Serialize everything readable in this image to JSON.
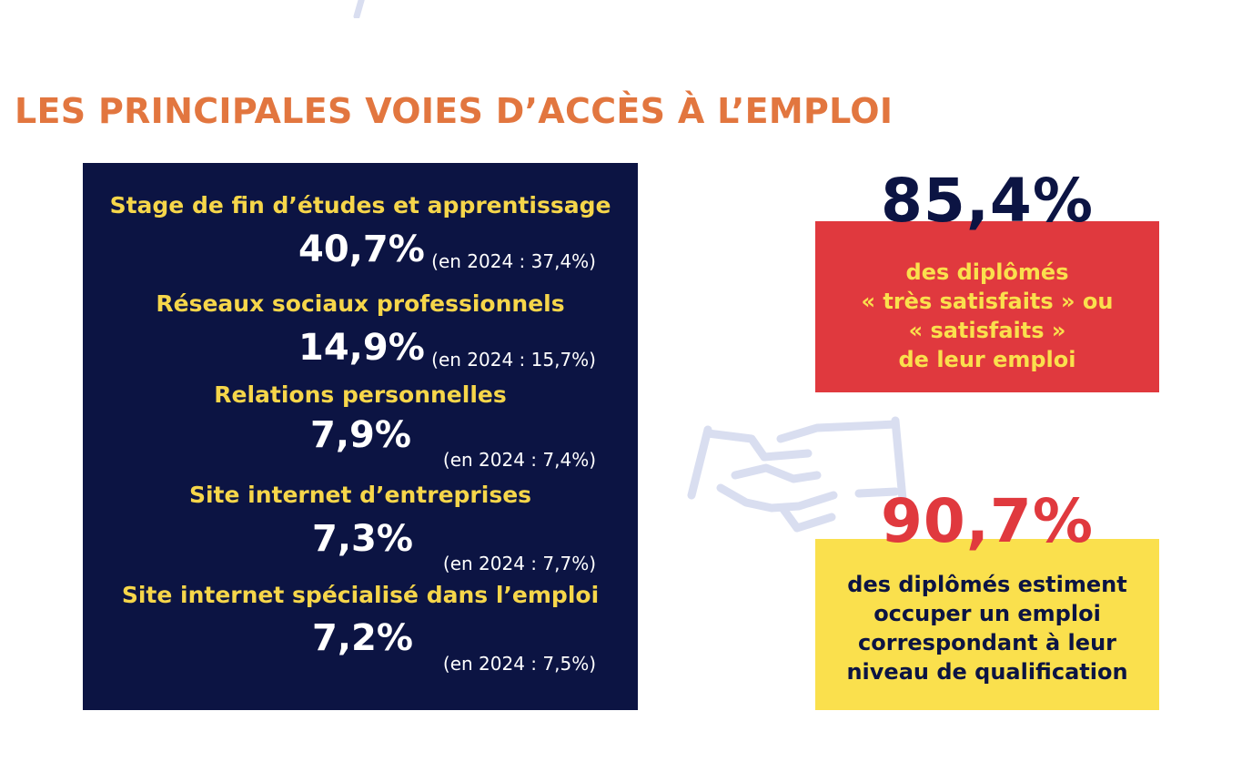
{
  "colors": {
    "orange": "#e2763f",
    "navy": "#0c1443",
    "yellow": "#f6d64a",
    "red": "#e0393e",
    "box_yellow": "#fae04d",
    "light_blue": "#d9def0"
  },
  "title": "LES PRINCIPALES VOIES D’ACCÈS À L’EMPLOI",
  "routes": [
    {
      "label": "Stage de fin d’études et apprentissage",
      "value": "40,7%",
      "previous": "(en 2024 : 37,4%)"
    },
    {
      "label": "Réseaux sociaux professionnels",
      "value": "14,9%",
      "previous": "(en 2024 : 15,7%)"
    },
    {
      "label": "Relations personnelles",
      "value": "7,9%",
      "previous": "(en 2024 : 7,4%)"
    },
    {
      "label": "Site internet d’entreprises",
      "value": "7,3%",
      "previous": "(en 2024 : 7,7%)"
    },
    {
      "label": "Site internet spécialisé dans l’emploi",
      "value": "7,2%",
      "previous": "(en 2024 : 7,5%)"
    }
  ],
  "stat_satisfaction": {
    "value": "85,4%",
    "text": "des diplômés\n« très satisfaits » ou\n« satisfaits »\nde leur emploi"
  },
  "stat_qualification": {
    "value": "90,7%",
    "text": "des diplômés estiment\noccuper un emploi\ncorrespondant à leur\nniveau de qualification"
  },
  "icons": {
    "decoration": "handshake-icon",
    "top_decoration": "stroke-fragment-icon"
  }
}
